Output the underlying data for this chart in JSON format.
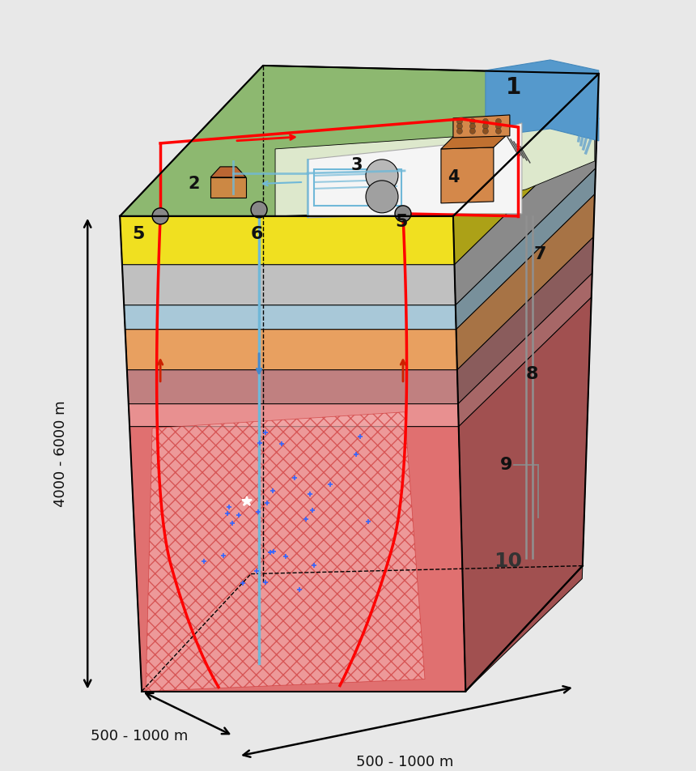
{
  "bg_color": "#e8e8e8",
  "layer_colors": {
    "surface_green": "#8db870",
    "yellow": "#f0e020",
    "gray1": "#c0c0c0",
    "light_blue": "#a8c8d8",
    "orange": "#e8a060",
    "dark_rose": "#c08080",
    "pink_granite": "#e89090",
    "deep_granite": "#e07070"
  },
  "red_pipe": "#ff0000",
  "blue_pipe": "#70b8d8",
  "gray_pipe": "#909090",
  "dimension_texts": [
    "4000 - 6000 m",
    "500 - 1000 m",
    "500 - 1000 m"
  ]
}
